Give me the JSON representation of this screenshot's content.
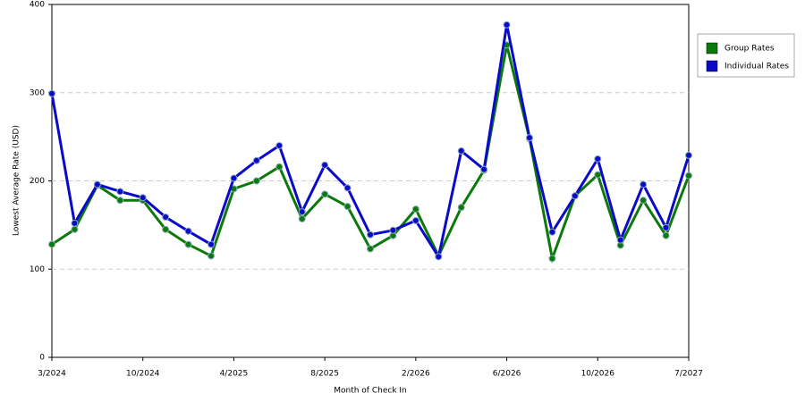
{
  "chart_data": {
    "type": "line",
    "xlabel": "Month of Check In",
    "ylabel": "Lowest Average Rate (USD)",
    "categories": [
      "3/2024",
      null,
      null,
      null,
      "10/2024",
      null,
      null,
      null,
      "4/2025",
      null,
      null,
      null,
      "8/2025",
      null,
      null,
      null,
      "2/2026",
      null,
      null,
      null,
      "6/2026",
      null,
      null,
      null,
      "10/2026",
      null,
      null,
      null,
      "7/2027"
    ],
    "series": [
      {
        "name": "Group Rates",
        "color": "#0b7a0b",
        "values": [
          128,
          145,
          195,
          178,
          178,
          145,
          128,
          115,
          191,
          200,
          216,
          157,
          185,
          171,
          123,
          138,
          168,
          115,
          170,
          212,
          354,
          248,
          112,
          183,
          207,
          127,
          178,
          138,
          206
        ]
      },
      {
        "name": "Individual Rates",
        "color": "#0a0ac8",
        "values": [
          299,
          152,
          196,
          188,
          181,
          159,
          143,
          128,
          203,
          223,
          240,
          165,
          218,
          192,
          139,
          144,
          155,
          114,
          234,
          213,
          377,
          249,
          142,
          183,
          225,
          133,
          196,
          147,
          229
        ]
      }
    ],
    "ylim": [
      0,
      400
    ],
    "yticks": [
      0,
      100,
      200,
      300,
      400
    ],
    "grid": true,
    "legend": "right"
  }
}
